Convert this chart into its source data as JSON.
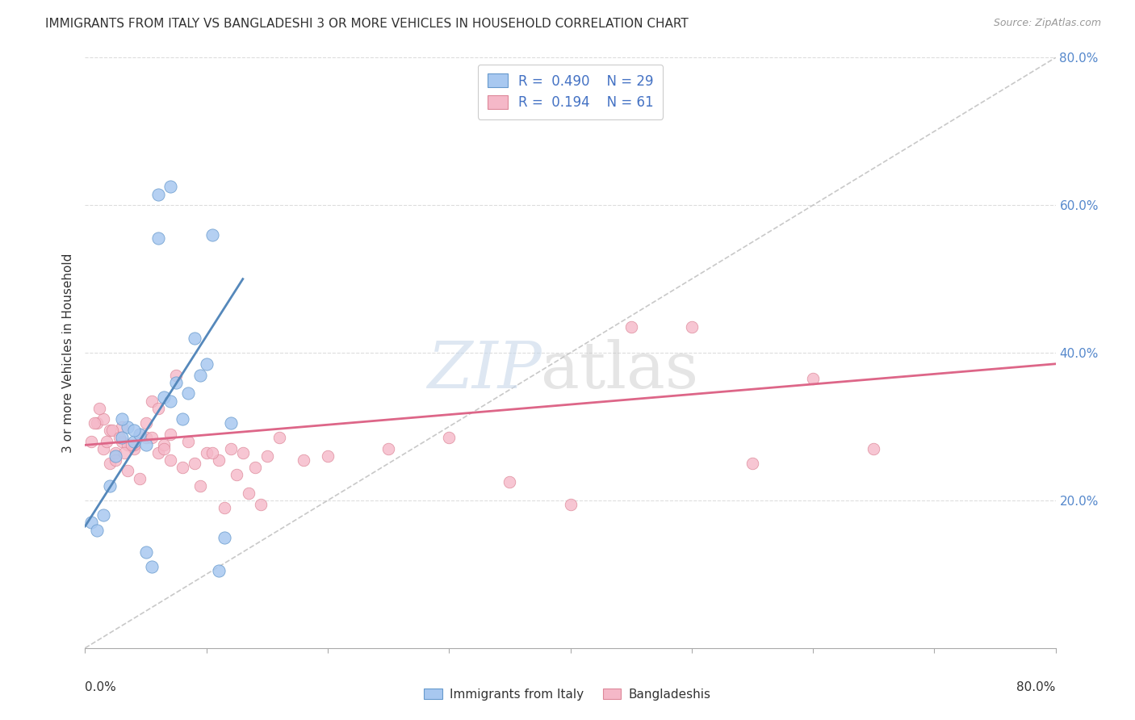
{
  "title": "IMMIGRANTS FROM ITALY VS BANGLADESHI 3 OR MORE VEHICLES IN HOUSEHOLD CORRELATION CHART",
  "source": "Source: ZipAtlas.com",
  "ylabel": "3 or more Vehicles in Household",
  "legend_italy": "Immigrants from Italy",
  "legend_bangladesh": "Bangladeshis",
  "R_italy": "0.490",
  "N_italy": "29",
  "R_bangladesh": "0.194",
  "N_bangladesh": "61",
  "italy_color": "#a8c8f0",
  "italy_edge_color": "#6699cc",
  "bangladesh_color": "#f5b8c8",
  "bangladesh_edge_color": "#dd8899",
  "italy_line_color": "#5588bb",
  "bangladesh_line_color": "#dd6688",
  "diagonal_color": "#bbbbbb",
  "title_color": "#333333",
  "source_color": "#999999",
  "axis_color": "#aaaaaa",
  "right_label_color": "#5588cc",
  "grid_color": "#dddddd",
  "watermark_zip_color": "#c8d8ea",
  "watermark_atlas_color": "#cccccc",
  "xmin": 0.0,
  "xmax": 80.0,
  "ymin": 0.0,
  "ymax": 80.0,
  "italy_scatter_x": [
    0.5,
    1.0,
    1.5,
    2.0,
    2.5,
    3.0,
    3.5,
    4.0,
    4.5,
    5.0,
    5.5,
    6.0,
    6.5,
    7.0,
    7.5,
    8.0,
    8.5,
    9.0,
    9.5,
    10.0,
    10.5,
    11.0,
    11.5,
    12.0,
    3.0,
    4.0,
    5.0,
    6.0,
    7.0
  ],
  "italy_scatter_y": [
    17.0,
    16.0,
    18.0,
    22.0,
    26.0,
    28.5,
    30.0,
    28.0,
    29.0,
    13.0,
    11.0,
    61.5,
    34.0,
    33.5,
    36.0,
    31.0,
    34.5,
    42.0,
    37.0,
    38.5,
    56.0,
    10.5,
    15.0,
    30.5,
    31.0,
    29.5,
    27.5,
    55.5,
    62.5
  ],
  "bang_scatter_x": [
    0.5,
    1.0,
    1.5,
    2.0,
    2.5,
    3.0,
    3.5,
    4.0,
    4.5,
    5.0,
    5.5,
    6.0,
    6.5,
    7.0,
    8.0,
    9.0,
    10.0,
    11.0,
    12.0,
    13.0,
    14.0,
    15.0,
    16.0,
    18.0,
    20.0,
    25.0,
    30.0,
    35.0,
    40.0,
    45.0,
    50.0,
    55.0,
    60.0,
    65.0,
    1.5,
    2.0,
    2.5,
    3.0,
    3.5,
    4.0,
    4.5,
    5.0,
    5.5,
    6.0,
    6.5,
    7.0,
    7.5,
    8.5,
    9.5,
    10.5,
    11.5,
    12.5,
    13.5,
    14.5,
    0.8,
    1.2,
    1.8,
    2.2,
    2.8,
    3.2,
    3.8
  ],
  "bang_scatter_y": [
    28.0,
    30.5,
    27.0,
    29.5,
    26.5,
    28.0,
    27.5,
    27.0,
    29.0,
    28.5,
    33.5,
    26.5,
    27.5,
    25.5,
    24.5,
    25.0,
    26.5,
    25.5,
    27.0,
    26.5,
    24.5,
    26.0,
    28.5,
    25.5,
    26.0,
    27.0,
    28.5,
    22.5,
    19.5,
    43.5,
    43.5,
    25.0,
    36.5,
    27.0,
    31.0,
    25.0,
    25.5,
    30.0,
    24.0,
    27.5,
    23.0,
    30.5,
    28.5,
    32.5,
    27.0,
    29.0,
    37.0,
    28.0,
    22.0,
    26.5,
    19.0,
    23.5,
    21.0,
    19.5,
    30.5,
    32.5,
    28.0,
    29.5,
    28.5,
    26.5,
    27.5
  ],
  "italy_line_x0": 0.0,
  "italy_line_y0": 16.5,
  "italy_line_x1": 13.0,
  "italy_line_y1": 50.0,
  "bang_line_x0": 0.0,
  "bang_line_y0": 27.5,
  "bang_line_x1": 80.0,
  "bang_line_y1": 38.5
}
